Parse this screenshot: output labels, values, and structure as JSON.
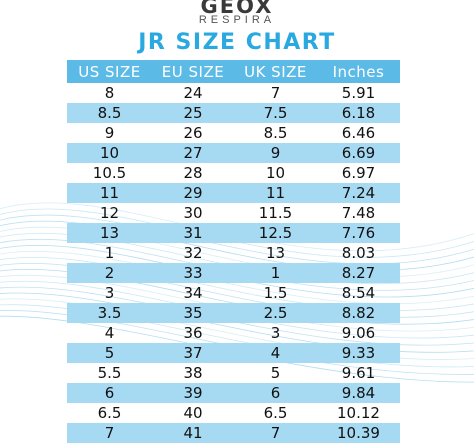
{
  "brand": {
    "name": "GEOX",
    "sub": "RESPIRA"
  },
  "title": "JR SIZE CHART",
  "colors": {
    "title": "#2aa9e0",
    "header_bg": "#5bbbe6",
    "stripe_bg": "#a6daf3",
    "wave": "#8ccbe8"
  },
  "columns": [
    "US SIZE",
    "EU SIZE",
    "UK SIZE",
    "Inches"
  ],
  "rows": [
    [
      "8",
      "24",
      "7",
      "5.91"
    ],
    [
      "8.5",
      "25",
      "7.5",
      "6.18"
    ],
    [
      "9",
      "26",
      "8.5",
      "6.46"
    ],
    [
      "10",
      "27",
      "9",
      "6.69"
    ],
    [
      "10.5",
      "28",
      "10",
      "6.97"
    ],
    [
      "11",
      "29",
      "11",
      "7.24"
    ],
    [
      "12",
      "30",
      "11.5",
      "7.48"
    ],
    [
      "13",
      "31",
      "12.5",
      "7.76"
    ],
    [
      "1",
      "32",
      "13",
      "8.03"
    ],
    [
      "2",
      "33",
      "1",
      "8.27"
    ],
    [
      "3",
      "34",
      "1.5",
      "8.54"
    ],
    [
      "3.5",
      "35",
      "2.5",
      "8.82"
    ],
    [
      "4",
      "36",
      "3",
      "9.06"
    ],
    [
      "5",
      "37",
      "4",
      "9.33"
    ],
    [
      "5.5",
      "38",
      "5",
      "9.61"
    ],
    [
      "6",
      "39",
      "6",
      "9.84"
    ],
    [
      "6.5",
      "40",
      "6.5",
      "10.12"
    ],
    [
      "7",
      "41",
      "7",
      "10.39"
    ]
  ]
}
